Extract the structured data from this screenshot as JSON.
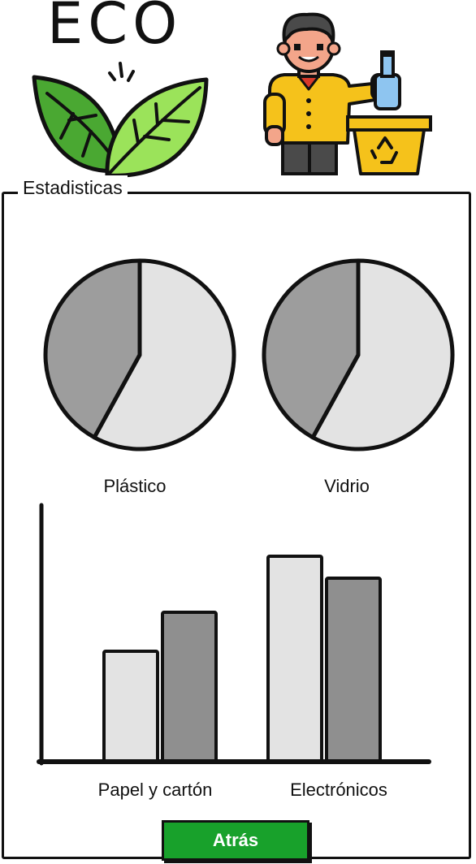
{
  "header": {
    "logo_text": "ECO",
    "logo_icon": "eco-leaves-icon",
    "illustration_icon": "person-recycling-icon"
  },
  "panel": {
    "title": "Estadisticas"
  },
  "colors": {
    "light_gray": "#e3e3e3",
    "dark_gray": "#9d9d9d",
    "bar_dark": "#8f8f8f",
    "button_green": "#18a12b",
    "leaf_dark": "#4aa832",
    "leaf_light": "#9be35a"
  },
  "chart_data": [
    {
      "type": "pie",
      "title": "Plástico",
      "slices": [
        {
          "color": "#e3e3e3",
          "value": 0.58
        },
        {
          "color": "#9d9d9d",
          "value": 0.42
        }
      ]
    },
    {
      "type": "pie",
      "title": "Vidrio",
      "slices": [
        {
          "color": "#e3e3e3",
          "value": 0.58
        },
        {
          "color": "#9d9d9d",
          "value": 0.42
        }
      ]
    },
    {
      "type": "bar",
      "categories": [
        "Papel y cartón",
        "Electrónicos"
      ],
      "series": [
        {
          "color": "#e3e3e3",
          "values": [
            45,
            84
          ]
        },
        {
          "color": "#8f8f8f",
          "values": [
            61,
            75
          ]
        }
      ],
      "ylim": [
        0,
        100
      ]
    }
  ],
  "footer": {
    "back_label": "Atrás"
  }
}
